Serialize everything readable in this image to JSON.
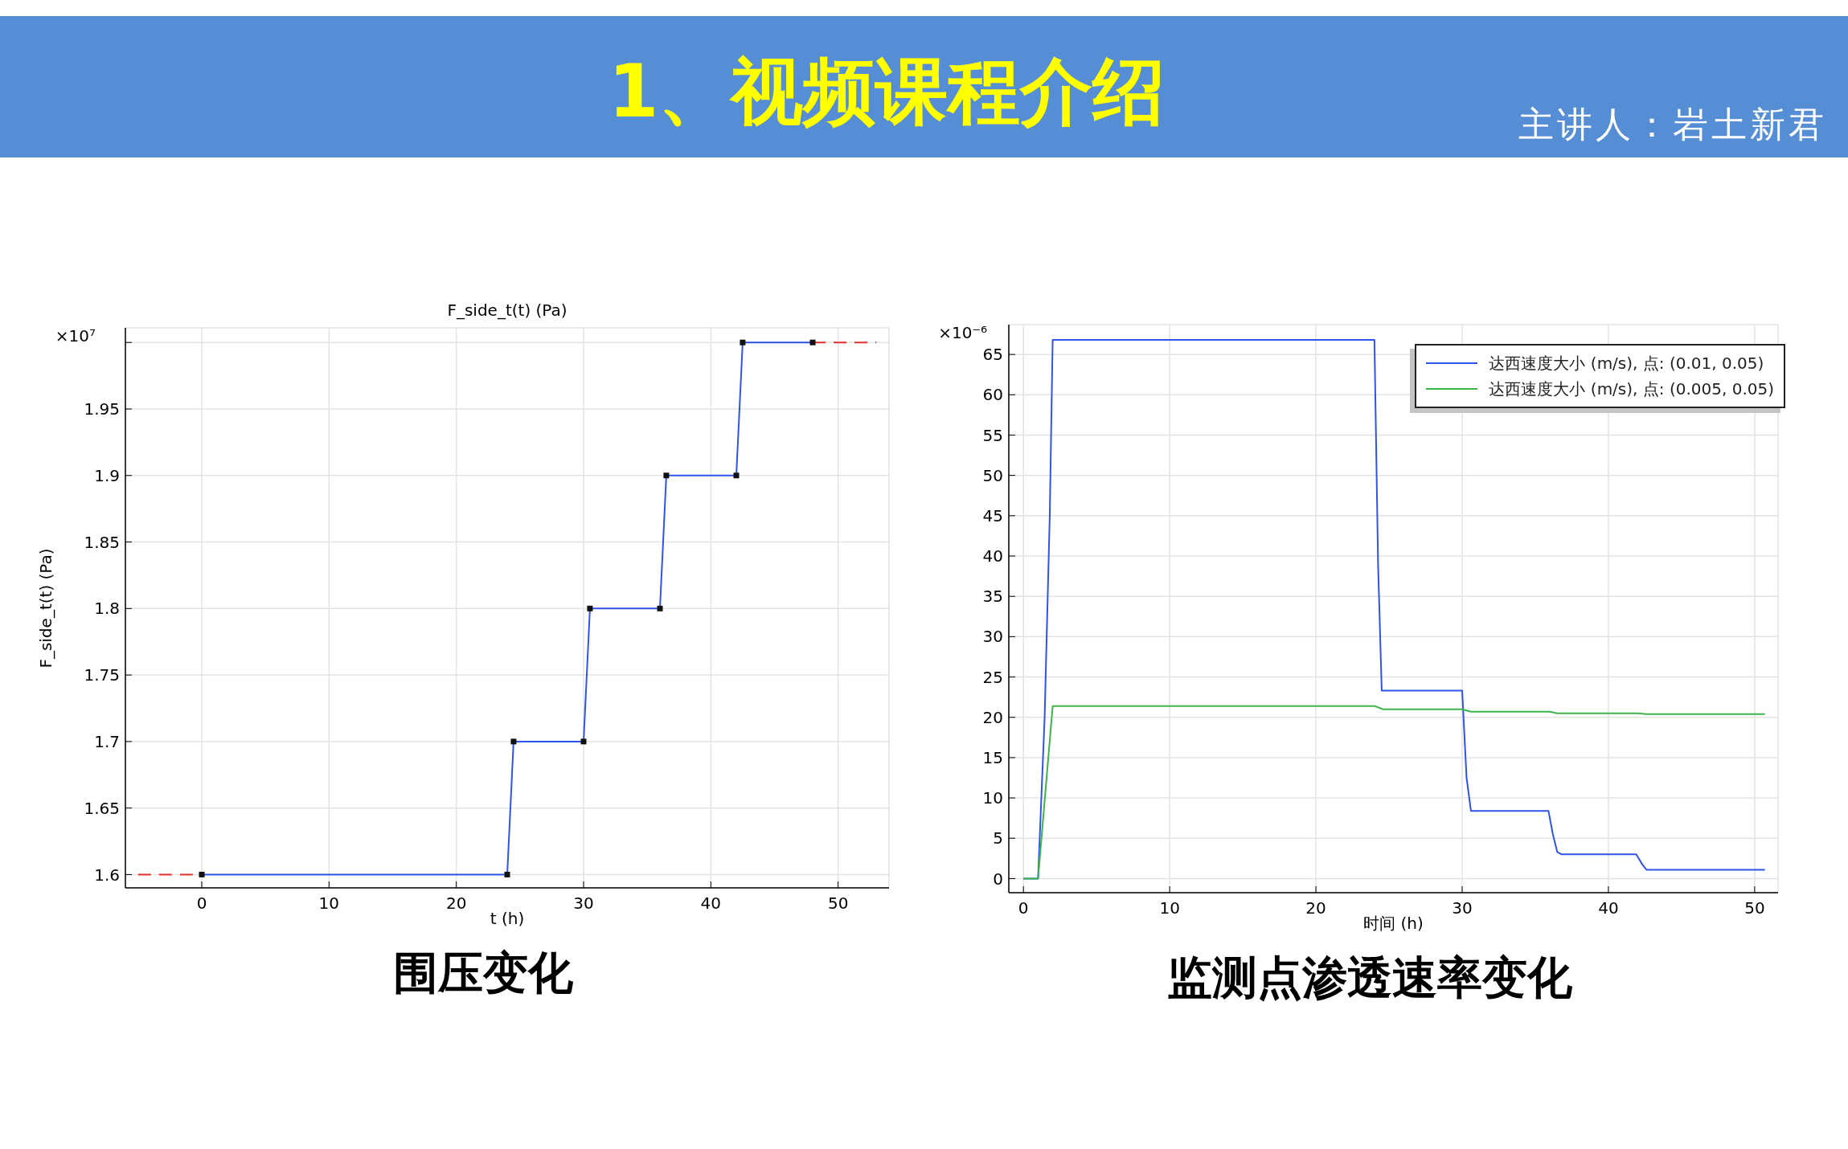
{
  "chart_data": [
    {
      "type": "other",
      "title": "1、视频课程介绍",
      "subtitle": "主讲人：岩土新君"
    },
    {
      "type": "line",
      "title": "F_side_t(t) (Pa)",
      "xlabel": "t (h)",
      "ylabel": "F_side_t(t) (Pa)",
      "annotations": [
        "×10⁷",
        "围压变化"
      ],
      "xlim": [
        -6,
        54
      ],
      "xticks": [
        0,
        10,
        20,
        30,
        40,
        50
      ],
      "ylim": [
        1.59,
        2.011
      ],
      "yticks": [
        1.6,
        1.65,
        1.7,
        1.75,
        1.8,
        1.85,
        1.9,
        1.95,
        {
          "value": 2,
          "label": null
        }
      ],
      "grid": true,
      "series": [
        {
          "color": "#2f54eb",
          "marker": "square",
          "line_style": "solid",
          "x": [
            0,
            24,
            24.5,
            30,
            30.5,
            36,
            36.5,
            42,
            42.5,
            48
          ],
          "values": [
            1.6,
            1.6,
            1.7,
            1.7,
            1.8,
            1.8,
            1.9,
            1.9,
            2,
            2
          ]
        },
        {
          "color": "#e8302a",
          "marker": "none",
          "line_style": "dashed",
          "x": [
            -5,
            0
          ],
          "values": [
            1.6,
            1.6
          ]
        },
        {
          "color": "#e8302a",
          "marker": "none",
          "line_style": "dashed",
          "x": [
            48,
            53
          ],
          "values": [
            2,
            2
          ]
        }
      ]
    },
    {
      "type": "line",
      "xlabel": "时间 (h)",
      "annotations": [
        "×10⁻⁶",
        "监测点渗透速率变化"
      ],
      "xlim": [
        -1,
        51.6
      ],
      "xticks": [
        0,
        10,
        20,
        30,
        40,
        50
      ],
      "ylim": [
        -1.75,
        68.7
      ],
      "yticks": [
        0,
        5,
        10,
        15,
        20,
        25,
        30,
        35,
        40,
        45,
        50,
        55,
        60,
        65
      ],
      "grid": true,
      "legend": "top right",
      "series": [
        {
          "name": "达西速度大小 (m/s), 点: (0.01, 0.05)",
          "color": "#2f54eb",
          "x": [
            0,
            1,
            1.45,
            1.8,
            2,
            24,
            24.25,
            24.5,
            30,
            30.3,
            30.6,
            35.9,
            36.2,
            36.5,
            36.8,
            41.9,
            42.3,
            42.6,
            50.7
          ],
          "values": [
            0,
            0,
            20,
            45,
            66.8,
            66.8,
            39,
            23.3,
            23.3,
            12.5,
            8.4,
            8.4,
            5.5,
            3.3,
            3,
            3,
            1.8,
            1.1,
            1.1
          ]
        },
        {
          "name": "达西速度大小 (m/s), 点: (0.005, 0.05)",
          "color": "#3cb54a",
          "x": [
            0,
            1,
            2,
            24,
            24.6,
            30,
            30.6,
            36,
            36.5,
            42,
            42.6,
            50.7
          ],
          "values": [
            0,
            0,
            21.4,
            21.4,
            21,
            21,
            20.7,
            20.7,
            20.5,
            20.5,
            20.4,
            20.4
          ]
        }
      ]
    }
  ]
}
